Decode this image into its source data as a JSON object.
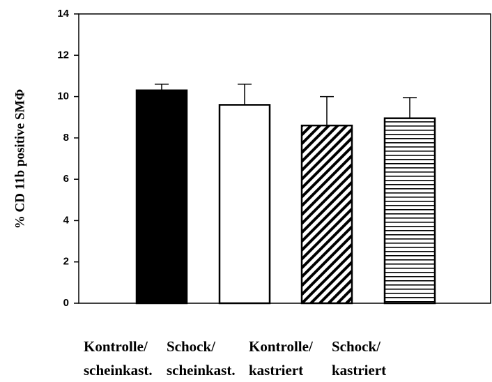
{
  "chart_data": {
    "type": "bar",
    "y_label": "% CD 11b positive SMΦ",
    "categories": [
      [
        "Kontrolle/",
        "scheinkast."
      ],
      [
        "Schock/",
        "scheinkast."
      ],
      [
        "Kontrolle/",
        "kastriert"
      ],
      [
        "Schock/",
        "kastriert"
      ]
    ],
    "values": [
      10.3,
      9.6,
      8.6,
      8.95
    ],
    "errors": [
      0.3,
      1.0,
      1.4,
      1.0
    ],
    "bar_patterns": [
      "solid",
      "none",
      "diagonal",
      "horizontal"
    ],
    "color": "#000000",
    "ylim": [
      0,
      14
    ],
    "yticks": [
      0,
      2,
      4,
      6,
      8,
      10,
      12,
      14
    ],
    "grid": false
  }
}
